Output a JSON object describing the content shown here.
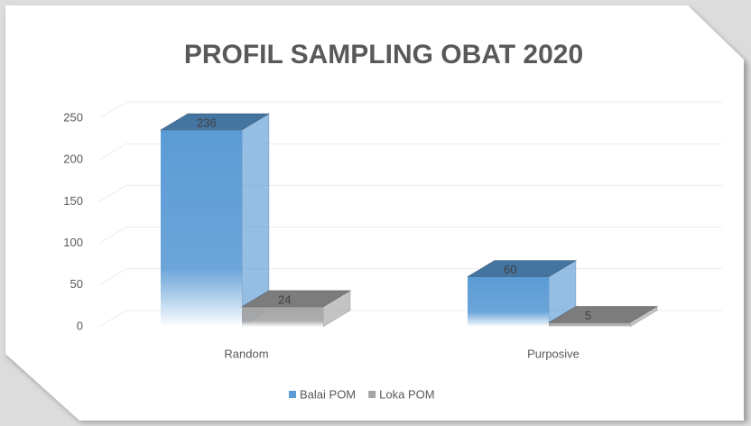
{
  "chart_data": {
    "type": "bar3d",
    "title": "PROFIL SAMPLING OBAT 2020",
    "categories": [
      "Random",
      "Purposive"
    ],
    "series": [
      {
        "name": "Balai POM",
        "color": "#5b9bd5",
        "values": [
          236,
          60
        ]
      },
      {
        "name": "Loka POM",
        "color": "#a5a5a5",
        "values": [
          24,
          5
        ]
      }
    ],
    "ylim": [
      0,
      250
    ],
    "yticks": [
      0,
      50,
      100,
      150,
      200,
      250
    ],
    "grid": true,
    "legend": "bottom"
  }
}
